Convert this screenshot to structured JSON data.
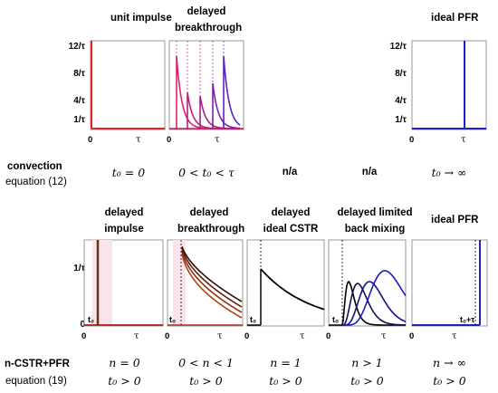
{
  "top": {
    "titles": {
      "unit_impulse": "unit impulse",
      "delayed_breakthrough_1": "delayed",
      "delayed_breakthrough_2": "breakthrough",
      "ideal_pfr": "ideal PFR"
    },
    "y_ticks": [
      "12/τ",
      "8/τ",
      "4/τ",
      "1/τ"
    ],
    "x_zero": "0",
    "x_tau": "τ"
  },
  "convection": {
    "label": "convection",
    "equation": "equation (12)",
    "conditions": [
      "t₀ = 0",
      "0 < t₀ < τ",
      "n/a",
      "n/a",
      "t₀ → ∞"
    ]
  },
  "bottom": {
    "titles": [
      [
        "delayed",
        "impulse"
      ],
      [
        "delayed",
        "breakthrough"
      ],
      [
        "delayed",
        "ideal CSTR"
      ],
      [
        "delayed limited",
        "back mixing"
      ],
      [
        "ideal PFR",
        ""
      ]
    ],
    "y_tick": "1/τ",
    "y_zero": "0",
    "x_zero": "0",
    "x_tau": "τ",
    "t0_label": "t₀",
    "t0_tau_label": "t₀+τ"
  },
  "ncstr": {
    "label": "n-CSTR+PFR",
    "equation": "equation (19)",
    "n_conditions": [
      "n = 0",
      "0 < n < 1",
      "n = 1",
      "n > 1",
      "n → ∞"
    ],
    "t0_conditions": [
      "t₀ > 0",
      "t₀ > 0",
      "t₀ > 0",
      "t₀ > 0",
      "t₀ > 0"
    ]
  },
  "colors": {
    "impulse_red": "#e8202a",
    "pfr_blue": "#2020c8",
    "magenta_family": [
      "#e0206a",
      "#c0207a",
      "#a0208a",
      "#8020a0",
      "#6020c0"
    ],
    "brown_family": [
      "#b04010",
      "#903010",
      "#602010",
      "#301008"
    ],
    "blue_family": [
      "#000000",
      "#101050",
      "#101090",
      "#1a1ac8"
    ]
  }
}
